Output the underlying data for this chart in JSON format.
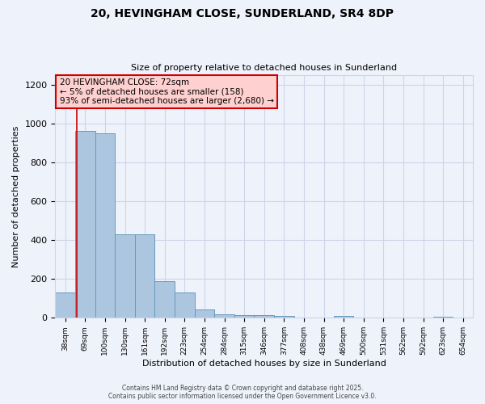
{
  "title": "20, HEVINGHAM CLOSE, SUNDERLAND, SR4 8DP",
  "subtitle": "Size of property relative to detached houses in Sunderland",
  "xlabel": "Distribution of detached houses by size in Sunderland",
  "ylabel": "Number of detached properties",
  "categories": [
    "38sqm",
    "69sqm",
    "100sqm",
    "130sqm",
    "161sqm",
    "192sqm",
    "223sqm",
    "254sqm",
    "284sqm",
    "315sqm",
    "346sqm",
    "377sqm",
    "408sqm",
    "438sqm",
    "469sqm",
    "500sqm",
    "531sqm",
    "562sqm",
    "592sqm",
    "623sqm",
    "654sqm"
  ],
  "values": [
    130,
    960,
    950,
    430,
    430,
    190,
    130,
    45,
    20,
    15,
    15,
    10,
    2,
    0,
    8,
    2,
    0,
    0,
    0,
    7,
    0
  ],
  "bar_color": "#adc6df",
  "bar_edge_color": "#6699bb",
  "background_color": "#eef2fb",
  "grid_color": "#ccd5e8",
  "annotation_box_text": "20 HEVINGHAM CLOSE: 72sqm\n← 5% of detached houses are smaller (158)\n93% of semi-detached houses are larger (2,680) →",
  "annotation_box_color": "#ffd0d0",
  "annotation_box_edge": "#cc0000",
  "ylim": [
    0,
    1250
  ],
  "yticks": [
    0,
    200,
    400,
    600,
    800,
    1000,
    1200
  ],
  "footer_line1": "Contains HM Land Registry data © Crown copyright and database right 2025.",
  "footer_line2": "Contains public sector information licensed under the Open Government Licence v3.0."
}
